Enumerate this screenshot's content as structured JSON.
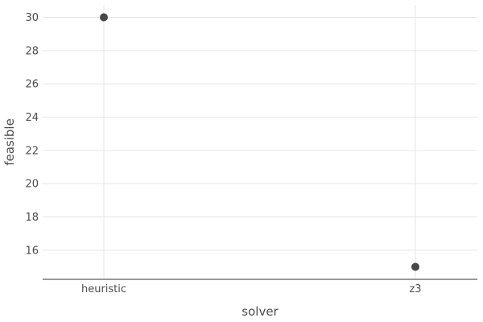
{
  "chart_data": {
    "type": "scatter",
    "xlabel": "solver",
    "ylabel": "feasible",
    "categories": [
      "heuristic",
      "z3"
    ],
    "values": [
      30,
      15
    ],
    "yticks": [
      16,
      18,
      20,
      22,
      24,
      26,
      28,
      30
    ],
    "ylim": [
      14.25,
      30.75
    ],
    "grid": true,
    "colors": {
      "point": "#474747",
      "grid": "#e5e5e5",
      "axis": "#333333",
      "text": "#4d4d4d"
    }
  }
}
